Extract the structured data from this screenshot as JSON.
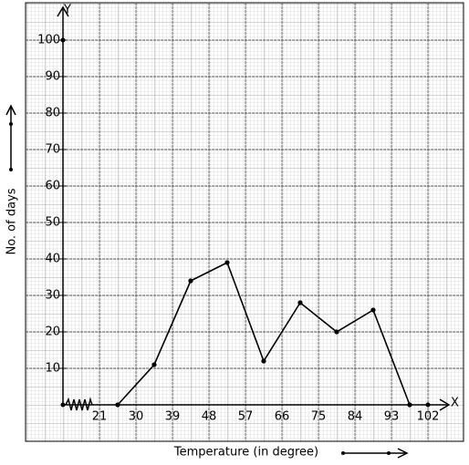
{
  "chart_data": {
    "type": "line",
    "x_axis_letter": "X",
    "y_axis_letter": "Y",
    "x_label": "Temperature (in degree)",
    "y_label": "No. of days",
    "x": [
      25.5,
      34.5,
      43.5,
      52.5,
      61.5,
      70.5,
      79.5,
      88.5,
      97.5
    ],
    "values": [
      0,
      11,
      34,
      39,
      12,
      28,
      20,
      26,
      0
    ],
    "color": "#000000",
    "xlim": [
      12,
      106.5
    ],
    "ylim": [
      0,
      108
    ],
    "xticks": [
      21,
      30,
      39,
      48,
      57,
      66,
      75,
      84,
      93,
      102
    ],
    "yticks": [
      10,
      20,
      30,
      40,
      50,
      60,
      70,
      80,
      90,
      100
    ],
    "grid": true
  }
}
